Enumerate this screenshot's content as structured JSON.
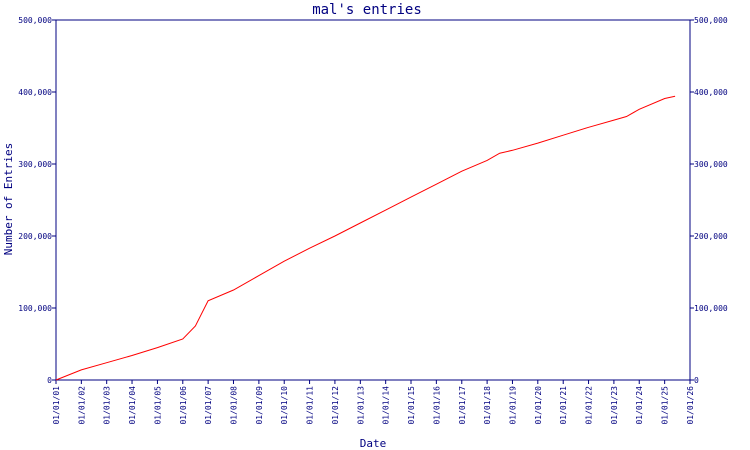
{
  "chart_data": {
    "type": "line",
    "title": "mal's entries",
    "xlabel": "Date",
    "ylabel": "Number of Entries",
    "ylim": [
      0,
      500000
    ],
    "xlim": [
      "2001-01-01",
      "2026-01-01"
    ],
    "y_ticks": [
      {
        "value": 0,
        "label": "0"
      },
      {
        "value": 100000,
        "label": "100,000"
      },
      {
        "value": 200000,
        "label": "200,000"
      },
      {
        "value": 300000,
        "label": "300,000"
      },
      {
        "value": 400000,
        "label": "400,000"
      },
      {
        "value": 500000,
        "label": "500,000"
      }
    ],
    "x_ticks": [
      {
        "value": "2001-01-01",
        "label": "01/01/01"
      },
      {
        "value": "2002-01-01",
        "label": "01/01/02"
      },
      {
        "value": "2003-01-01",
        "label": "01/01/03"
      },
      {
        "value": "2004-01-01",
        "label": "01/01/04"
      },
      {
        "value": "2005-01-01",
        "label": "01/01/05"
      },
      {
        "value": "2006-01-01",
        "label": "01/01/06"
      },
      {
        "value": "2007-01-01",
        "label": "01/01/07"
      },
      {
        "value": "2008-01-01",
        "label": "01/01/08"
      },
      {
        "value": "2009-01-01",
        "label": "01/01/09"
      },
      {
        "value": "2010-01-01",
        "label": "01/01/10"
      },
      {
        "value": "2011-01-01",
        "label": "01/01/11"
      },
      {
        "value": "2012-01-01",
        "label": "01/01/12"
      },
      {
        "value": "2013-01-01",
        "label": "01/01/13"
      },
      {
        "value": "2014-01-01",
        "label": "01/01/14"
      },
      {
        "value": "2015-01-01",
        "label": "01/01/15"
      },
      {
        "value": "2016-01-01",
        "label": "01/01/16"
      },
      {
        "value": "2017-01-01",
        "label": "01/01/17"
      },
      {
        "value": "2018-01-01",
        "label": "01/01/18"
      },
      {
        "value": "2019-01-01",
        "label": "01/01/19"
      },
      {
        "value": "2020-01-01",
        "label": "01/01/20"
      },
      {
        "value": "2021-01-01",
        "label": "01/01/21"
      },
      {
        "value": "2022-01-01",
        "label": "01/01/22"
      },
      {
        "value": "2023-01-01",
        "label": "01/01/23"
      },
      {
        "value": "2024-01-01",
        "label": "01/01/24"
      },
      {
        "value": "2025-01-01",
        "label": "01/01/25"
      },
      {
        "value": "2026-01-01",
        "label": "01/01/26"
      }
    ],
    "right_axis_mirrors_left": true,
    "grid": false,
    "series": [
      {
        "color": "#ff0000",
        "points": [
          {
            "x": "2001-01-01",
            "y": 0
          },
          {
            "x": "2002-01-01",
            "y": 14000
          },
          {
            "x": "2003-01-01",
            "y": 24000
          },
          {
            "x": "2004-01-01",
            "y": 34000
          },
          {
            "x": "2005-01-01",
            "y": 45000
          },
          {
            "x": "2006-01-01",
            "y": 57000
          },
          {
            "x": "2006-07-01",
            "y": 75000
          },
          {
            "x": "2007-01-01",
            "y": 110000
          },
          {
            "x": "2008-01-01",
            "y": 125000
          },
          {
            "x": "2009-01-01",
            "y": 145000
          },
          {
            "x": "2010-01-01",
            "y": 165000
          },
          {
            "x": "2011-01-01",
            "y": 183000
          },
          {
            "x": "2012-01-01",
            "y": 200000
          },
          {
            "x": "2013-01-01",
            "y": 218000
          },
          {
            "x": "2014-01-01",
            "y": 236000
          },
          {
            "x": "2015-01-01",
            "y": 254000
          },
          {
            "x": "2016-01-01",
            "y": 272000
          },
          {
            "x": "2017-01-01",
            "y": 290000
          },
          {
            "x": "2018-01-01",
            "y": 305000
          },
          {
            "x": "2018-07-01",
            "y": 315000
          },
          {
            "x": "2019-01-01",
            "y": 319000
          },
          {
            "x": "2020-01-01",
            "y": 329000
          },
          {
            "x": "2021-01-01",
            "y": 340000
          },
          {
            "x": "2022-01-01",
            "y": 351000
          },
          {
            "x": "2023-01-01",
            "y": 361000
          },
          {
            "x": "2023-07-01",
            "y": 366000
          },
          {
            "x": "2024-01-01",
            "y": 376000
          },
          {
            "x": "2025-01-01",
            "y": 391000
          },
          {
            "x": "2025-06-01",
            "y": 394000
          }
        ]
      }
    ]
  }
}
